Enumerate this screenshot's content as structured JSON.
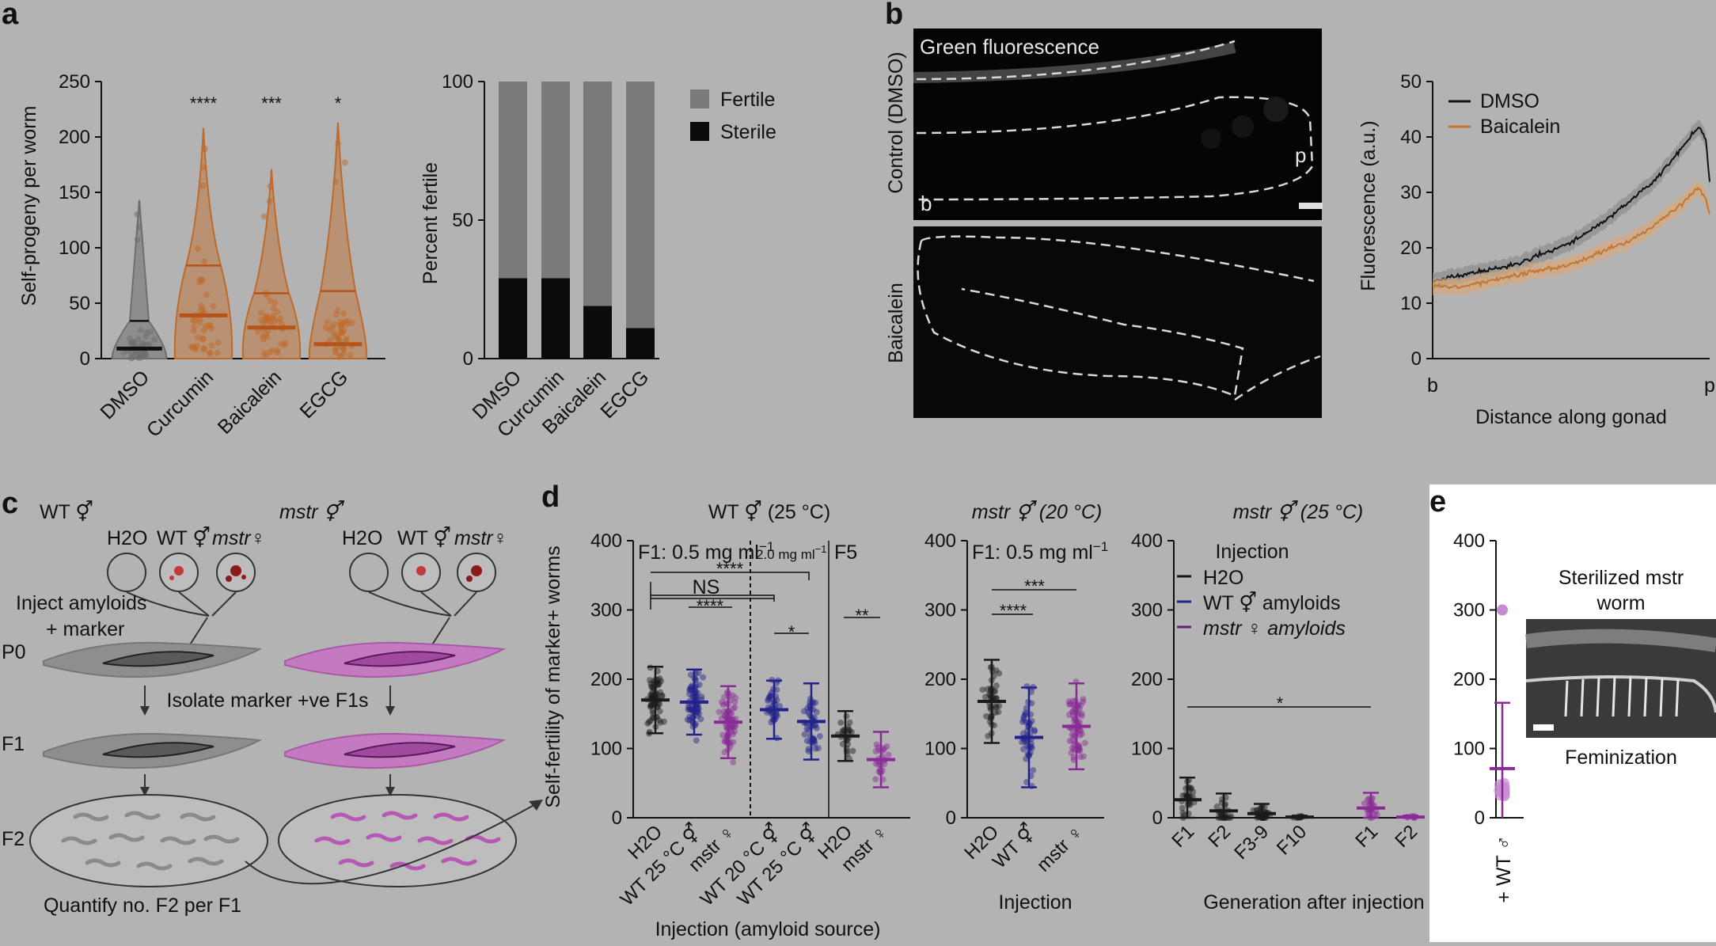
{
  "panel_labels": [
    "a",
    "b",
    "c",
    "d",
    "e"
  ],
  "chart_data": [
    {
      "id": "a-violin",
      "type": "violin",
      "categories": [
        "DMSO",
        "Curcumin",
        "Baicalein",
        "EGCG"
      ],
      "ylabel": "Self-progeny per worm",
      "ylim": [
        0,
        250
      ],
      "yticks": [
        "0",
        "50",
        "100",
        "150",
        "200",
        "250"
      ],
      "medians": [
        9,
        39,
        28,
        13
      ],
      "quartiles_upper": [
        34,
        84,
        59,
        61
      ],
      "maxima": [
        143,
        208,
        171,
        213
      ],
      "significance": [
        "",
        "****",
        "***",
        "*"
      ],
      "colors": {
        "DMSO": "#6e6e6e",
        "treated": "#c06a28",
        "treated_dark": "#b5541a"
      }
    },
    {
      "id": "a-stacked",
      "type": "bar",
      "categories": [
        "DMSO",
        "Curcumin",
        "Baicalein",
        "EGCG"
      ],
      "ylabel": "Percent fertile",
      "ylim": [
        0,
        100
      ],
      "yticks": [
        "0",
        "50",
        "100"
      ],
      "series": [
        {
          "name": "Sterile",
          "values": [
            29,
            29,
            19,
            11
          ],
          "color": "#0b0b0b"
        },
        {
          "name": "Fertile",
          "values": [
            71,
            71,
            81,
            89
          ],
          "color": "#7a7a7a"
        }
      ]
    },
    {
      "id": "b-profile",
      "type": "line",
      "xlabel": "Distance along gonad",
      "xticks": [
        "b",
        "p"
      ],
      "ylabel": "Fluorescence (a.u.)",
      "ylim": [
        0,
        50
      ],
      "yticks": [
        "0",
        "10",
        "20",
        "30",
        "40",
        "50"
      ],
      "series": [
        {
          "name": "DMSO",
          "color": "#111111",
          "points": [
            [
              0,
              14
            ],
            [
              0.1,
              15
            ],
            [
              0.2,
              16
            ],
            [
              0.3,
              17
            ],
            [
              0.4,
              19
            ],
            [
              0.5,
              21
            ],
            [
              0.6,
              24
            ],
            [
              0.7,
              28
            ],
            [
              0.8,
              32
            ],
            [
              0.9,
              38
            ],
            [
              0.96,
              42
            ],
            [
              0.985,
              40
            ],
            [
              1,
              32
            ]
          ]
        },
        {
          "name": "Baicalein",
          "color": "#c4762e",
          "points": [
            [
              0,
              13
            ],
            [
              0.1,
              13
            ],
            [
              0.2,
              14
            ],
            [
              0.3,
              15
            ],
            [
              0.4,
              16
            ],
            [
              0.5,
              17
            ],
            [
              0.6,
              19
            ],
            [
              0.7,
              21
            ],
            [
              0.8,
              24
            ],
            [
              0.9,
              28
            ],
            [
              0.96,
              31
            ],
            [
              0.985,
              29
            ],
            [
              1,
              26
            ]
          ]
        }
      ]
    },
    {
      "id": "d-wt",
      "type": "scatter",
      "title": "WT ⚥ (25 °C)",
      "ylabel": "Self-fertility of marker+ worms",
      "xlabel": "Injection (amyloid source)",
      "ylim": [
        0,
        400
      ],
      "yticks": [
        "0",
        "100",
        "200",
        "300",
        "400"
      ],
      "section_labels": [
        "F1: 0.5 mg ml",
        "2.0 mg ml",
        "F5"
      ],
      "categories": [
        "H2O",
        "WT 25 °C ⚥",
        "mstr ♀",
        "WT 20 °C ⚥",
        "WT 25 °C ⚥",
        "H2O",
        "mstr ♀"
      ],
      "means": [
        170,
        167,
        138,
        156,
        139,
        118,
        84
      ],
      "sd": [
        48,
        47,
        52,
        42,
        55,
        36,
        40
      ],
      "significance": [
        "****",
        "NS",
        "****",
        "*",
        "**"
      ]
    },
    {
      "id": "d-mstr20",
      "type": "scatter",
      "title": "mstr ⚥ (20 °C)",
      "xlabel": "Injection",
      "section_labels": [
        "F1: 0.5 mg ml"
      ],
      "categories": [
        "H2O",
        "WT ⚥",
        "mstr ♀"
      ],
      "means": [
        168,
        116,
        132
      ],
      "sd": [
        60,
        72,
        62
      ],
      "significance": [
        "***",
        "****"
      ]
    },
    {
      "id": "d-mstr25",
      "type": "scatter",
      "title": "mstr ⚥ (25 °C)",
      "xlabel": "Generation after injection",
      "categories": [
        "F1",
        "F2",
        "F3-9",
        "F10",
        "F1",
        "F2"
      ],
      "means": [
        26,
        10,
        6,
        1,
        14,
        1
      ],
      "sd": [
        32,
        25,
        14,
        2,
        22,
        2
      ],
      "legend_title": "Injection",
      "legend": [
        "H2O",
        "WT ⚥ amyloids",
        "mstr ♀ amyloids"
      ],
      "significance": [
        "*"
      ]
    },
    {
      "id": "e-scatter",
      "type": "scatter",
      "categories": [
        "+ WT ♂"
      ],
      "ylim": [
        0,
        400
      ],
      "yticks": [
        "0",
        "100",
        "200",
        "300",
        "400"
      ],
      "mean": 71,
      "sd": 95
    }
  ],
  "b_images": {
    "title": "Green fluorescence",
    "row_labels": [
      "Control (DMSO)",
      "Baicalein"
    ],
    "markers": [
      "b",
      "p"
    ]
  },
  "c_schematic": {
    "left_title": "WT ⚥",
    "right_title": "mstr ⚥",
    "well_labels": [
      "H2O",
      "WT ⚥",
      "mstr♀"
    ],
    "inject_text": [
      "Inject amyloids",
      "+ marker"
    ],
    "isolate_text": "Isolate marker +ve F1s",
    "row_labels": [
      "P0",
      "F1",
      "F2"
    ],
    "quantify_text": "Quantify no. F2 per F1"
  },
  "e_image": {
    "title_line1": "Sterilized mstr",
    "title_line2": "worm",
    "caption": "Feminization"
  }
}
